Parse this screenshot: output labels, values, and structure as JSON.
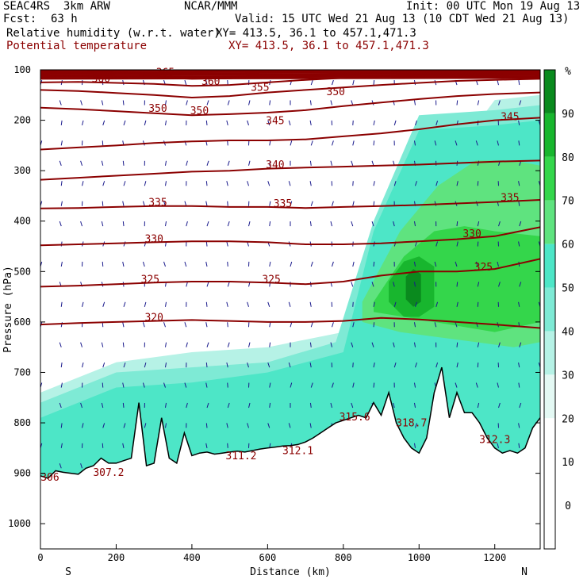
{
  "header": {
    "model": "SEAC4RS  3km ARW",
    "org": "NCAR/MMM",
    "init": "Init: 00 UTC Mon 19 Aug 13",
    "fcst_label": "Fcst:",
    "fcst_value": "63 h",
    "valid": "Valid: 15 UTC Wed 21 Aug 13 (10 CDT Wed 21 Aug 13)",
    "field1": "Relative humidity (w.r.t. water)",
    "field1_xy": "XY= 413.5, 36.1 to 457.1,471.3",
    "field2": "Potential temperature",
    "field2_xy": "XY= 413.5, 36.1 to 457.1,471.3"
  },
  "colors": {
    "contour": "#8b0000",
    "wind": "#1a1a8c",
    "terrain": "#ffffff",
    "rh_scale": [
      "#ffffff",
      "#ffffff",
      "#ffffff",
      "#ffffff",
      "#e4f9f4",
      "#b6f2e6",
      "#7eead5",
      "#4de6c7",
      "#5fe37f",
      "#34d64b",
      "#18b62e",
      "#0a8a1e",
      "#006010"
    ]
  },
  "chart_data": {
    "type": "heatmap",
    "xlabel": "Distance (km)",
    "ylabel": "Pressure (hPa)",
    "xlim": [
      0,
      1320
    ],
    "ylim": [
      1050,
      100
    ],
    "x_ticks": [
      0,
      200,
      400,
      600,
      800,
      1000,
      1200
    ],
    "y_ticks": [
      100,
      200,
      300,
      400,
      500,
      600,
      700,
      800,
      900,
      1000
    ],
    "x_end_labels": {
      "left": "S",
      "right": "N"
    },
    "colorbar": {
      "unit": "%",
      "ticks": [
        0,
        10,
        20,
        30,
        40,
        50,
        60,
        70,
        80,
        90
      ],
      "levels": [
        -10,
        0,
        10,
        20,
        30,
        40,
        50,
        60,
        70,
        80,
        90,
        100
      ]
    },
    "theta_contours": [
      {
        "value": 306,
        "label": "306",
        "x": [
          0,
          60
        ],
        "p": [
          902,
          905
        ]
      },
      {
        "value": 307.2,
        "label": "307.2",
        "x": [
          100,
          200
        ],
        "p": [
          900,
          895
        ]
      },
      {
        "value": 311.2,
        "label": "311.2",
        "x": [
          450,
          560
        ],
        "p": [
          860,
          858
        ]
      },
      {
        "value": 312.1,
        "label": "312.1",
        "x": [
          600,
          680
        ],
        "p": [
          852,
          850
        ]
      },
      {
        "value": 315.6,
        "label": "315.6",
        "x": [
          780,
          880
        ],
        "p": [
          795,
          790
        ]
      },
      {
        "value": 318.7,
        "label": "318.7",
        "x": [
          950,
          1020
        ],
        "p": [
          802,
          800
        ]
      },
      {
        "value": 312.3,
        "label": "312.3",
        "x": [
          1150,
          1230
        ],
        "p": [
          835,
          830
        ]
      },
      {
        "value": 320,
        "label": "320",
        "x": [
          0,
          100,
          200,
          300,
          400,
          500,
          600,
          700,
          800,
          900,
          1000,
          1100,
          1200,
          1320
        ],
        "p": [
          605,
          602,
          600,
          598,
          596,
          598,
          600,
          600,
          598,
          592,
          595,
          600,
          605,
          612
        ]
      },
      {
        "value": 325,
        "label": "325",
        "x": [
          0,
          100,
          200,
          300,
          400,
          500,
          600,
          700,
          800,
          900,
          1000,
          1100,
          1200,
          1320
        ],
        "p": [
          530,
          528,
          525,
          522,
          520,
          520,
          522,
          525,
          520,
          508,
          500,
          500,
          495,
          475
        ]
      },
      {
        "value": 330,
        "label": "330",
        "x": [
          0,
          100,
          200,
          300,
          400,
          500,
          600,
          700,
          800,
          900,
          1000,
          1100,
          1200,
          1320
        ],
        "p": [
          448,
          446,
          444,
          442,
          440,
          440,
          442,
          446,
          446,
          444,
          440,
          436,
          430,
          412
        ]
      },
      {
        "value": 335,
        "label": "335",
        "x": [
          0,
          100,
          200,
          300,
          400,
          500,
          600,
          700,
          800,
          900,
          1000,
          1100,
          1200,
          1320
        ],
        "p": [
          375,
          374,
          372,
          370,
          370,
          372,
          372,
          374,
          372,
          370,
          368,
          365,
          362,
          358
        ]
      },
      {
        "value": 340,
        "label": "340",
        "x": [
          0,
          100,
          200,
          300,
          400,
          500,
          600,
          700,
          800,
          900,
          1000,
          1100,
          1200,
          1320
        ],
        "p": [
          318,
          314,
          310,
          306,
          302,
          300,
          296,
          294,
          292,
          290,
          288,
          285,
          282,
          280
        ]
      },
      {
        "value": 345,
        "label": "345",
        "x": [
          0,
          100,
          200,
          300,
          400,
          500,
          600,
          700,
          800,
          900,
          1000,
          1100,
          1200,
          1320
        ],
        "p": [
          258,
          254,
          250,
          245,
          242,
          240,
          240,
          238,
          232,
          226,
          218,
          208,
          200,
          195
        ]
      },
      {
        "value": 350,
        "label": "350",
        "x": [
          0,
          100,
          200,
          300,
          400,
          500,
          600,
          700,
          800,
          900,
          1000,
          1100,
          1200,
          1320
        ],
        "p": [
          175,
          178,
          182,
          186,
          190,
          188,
          185,
          180,
          172,
          165,
          158,
          152,
          148,
          145
        ]
      },
      {
        "value": 355,
        "label": "355",
        "x": [
          0,
          100,
          200,
          300,
          400,
          500,
          600,
          700,
          800,
          900,
          1000,
          1100,
          1200,
          1320
        ],
        "p": [
          140,
          142,
          146,
          150,
          155,
          152,
          145,
          140,
          135,
          130,
          126,
          122,
          120,
          118
        ]
      },
      {
        "value": 360,
        "label": "360",
        "x": [
          0,
          100,
          200,
          300,
          400,
          500,
          600,
          700,
          800,
          900,
          1000,
          1100,
          1200,
          1320
        ],
        "p": [
          125,
          124,
          126,
          128,
          132,
          130,
          125,
          120,
          116,
          113,
          111,
          110,
          109,
          108
        ]
      },
      {
        "value": 365,
        "label": "365",
        "x": [
          0,
          100,
          200,
          300,
          400,
          500,
          600,
          700,
          800,
          900,
          1000,
          1100,
          1200,
          1320
        ],
        "p": [
          113,
          112,
          113,
          115,
          118,
          117,
          113,
          110,
          108,
          106,
          105,
          104,
          104,
          103
        ]
      }
    ],
    "theta_contour_labels": [
      {
        "text": "360",
        "x": 160,
        "p": 124
      },
      {
        "text": "365",
        "x": 330,
        "p": 112
      },
      {
        "text": "360",
        "x": 450,
        "p": 130
      },
      {
        "text": "355",
        "x": 580,
        "p": 142
      },
      {
        "text": "350",
        "x": 780,
        "p": 150
      },
      {
        "text": "350",
        "x": 310,
        "p": 183
      },
      {
        "text": "350",
        "x": 420,
        "p": 188
      },
      {
        "text": "345",
        "x": 620,
        "p": 208
      },
      {
        "text": "345",
        "x": 1240,
        "p": 200
      },
      {
        "text": "340",
        "x": 620,
        "p": 295
      },
      {
        "text": "335",
        "x": 310,
        "p": 370
      },
      {
        "text": "335",
        "x": 640,
        "p": 372
      },
      {
        "text": "335",
        "x": 1240,
        "p": 360
      },
      {
        "text": "330",
        "x": 300,
        "p": 442
      },
      {
        "text": "330",
        "x": 1140,
        "p": 432
      },
      {
        "text": "325",
        "x": 290,
        "p": 522
      },
      {
        "text": "325",
        "x": 610,
        "p": 522
      },
      {
        "text": "325",
        "x": 1170,
        "p": 498
      },
      {
        "text": "320",
        "x": 300,
        "p": 598
      },
      {
        "text": "306",
        "x": 25,
        "p": 915
      },
      {
        "text": "307.2",
        "x": 180,
        "p": 905
      },
      {
        "text": "311.2",
        "x": 530,
        "p": 872
      },
      {
        "text": "312.1",
        "x": 680,
        "p": 862
      },
      {
        "text": "315.6",
        "x": 830,
        "p": 795
      },
      {
        "text": "318.7",
        "x": 980,
        "p": 807
      },
      {
        "text": "312.3",
        "x": 1200,
        "p": 840
      }
    ],
    "terrain": {
      "x": [
        0,
        20,
        40,
        60,
        80,
        100,
        120,
        140,
        160,
        180,
        200,
        220,
        240,
        260,
        280,
        300,
        320,
        340,
        360,
        380,
        400,
        420,
        440,
        460,
        480,
        500,
        520,
        540,
        560,
        580,
        600,
        620,
        640,
        660,
        680,
        700,
        720,
        740,
        760,
        780,
        800,
        820,
        840,
        860,
        880,
        900,
        920,
        940,
        960,
        980,
        1000,
        1020,
        1040,
        1060,
        1080,
        1100,
        1120,
        1140,
        1160,
        1180,
        1200,
        1220,
        1240,
        1260,
        1280,
        1300,
        1320
      ],
      "p": [
        905,
        910,
        895,
        898,
        900,
        902,
        890,
        885,
        870,
        880,
        880,
        875,
        870,
        760,
        885,
        880,
        790,
        870,
        880,
        820,
        865,
        860,
        858,
        862,
        860,
        858,
        856,
        858,
        855,
        852,
        850,
        848,
        846,
        845,
        843,
        838,
        830,
        820,
        810,
        800,
        795,
        790,
        785,
        790,
        760,
        785,
        740,
        800,
        830,
        850,
        860,
        830,
        740,
        690,
        790,
        740,
        780,
        780,
        800,
        830,
        850,
        860,
        855,
        860,
        850,
        810,
        790
      ]
    },
    "rh_regions": [
      {
        "level": 30,
        "x": [
          0,
          200,
          400,
          600,
          800,
          1000,
          1200,
          1320,
          1320,
          1200,
          1000,
          800,
          600,
          400,
          200,
          0
        ],
        "p": [
          740,
          680,
          660,
          650,
          620,
          360,
          160,
          150,
          880,
          860,
          870,
          820,
          870,
          880,
          900,
          920
        ]
      },
      {
        "level": 40,
        "x": [
          0,
          200,
          400,
          600,
          780,
          880,
          1000,
          1200,
          1320,
          1320,
          1200,
          1000,
          800,
          600,
          400,
          200,
          0
        ],
        "p": [
          760,
          700,
          690,
          680,
          640,
          400,
          190,
          180,
          170,
          880,
          860,
          870,
          820,
          870,
          880,
          900,
          920
        ]
      },
      {
        "level": 50,
        "x": [
          0,
          200,
          400,
          600,
          800,
          880,
          1000,
          1200,
          1320,
          1320,
          1200,
          1000,
          800,
          600,
          400,
          200,
          0
        ],
        "p": [
          790,
          730,
          720,
          700,
          660,
          420,
          220,
          210,
          200,
          880,
          860,
          870,
          820,
          870,
          880,
          900,
          920
        ]
      },
      {
        "level": 60,
        "x": [
          850,
          950,
          1050,
          1150,
          1250,
          1320,
          1320,
          1250,
          1150,
          1050,
          950,
          850
        ],
        "p": [
          560,
          420,
          330,
          280,
          280,
          290,
          640,
          650,
          640,
          630,
          620,
          600
        ]
      },
      {
        "level": 70,
        "x": [
          880,
          960,
          1040,
          1120,
          1200,
          1320,
          1320,
          1200,
          1120,
          1040,
          960,
          880
        ],
        "p": [
          560,
          470,
          420,
          410,
          420,
          430,
          600,
          620,
          610,
          600,
          590,
          580
        ]
      },
      {
        "level": 80,
        "x": [
          920,
          960,
          1000,
          1040,
          1040,
          1000,
          960,
          920
        ],
        "p": [
          520,
          480,
          470,
          490,
          570,
          590,
          590,
          560
        ]
      },
      {
        "level": 90,
        "x": [
          965,
          985,
          1005,
          1005,
          985,
          965
        ],
        "p": [
          510,
          495,
          505,
          560,
          570,
          555
        ]
      }
    ]
  }
}
